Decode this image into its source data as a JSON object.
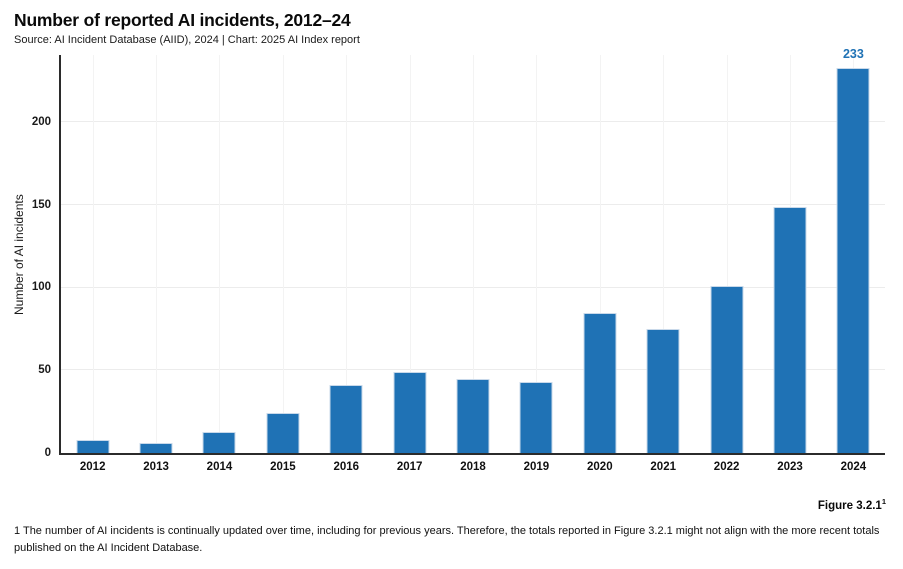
{
  "header": {
    "title": "Number of reported AI incidents, 2012–24",
    "subtitle": "Source: AI Incident Database (AIID), 2024 | Chart: 2025 AI Index report"
  },
  "footer": {
    "figure_label": "Figure 3.2.1",
    "figure_label_superscript": "1",
    "footnote": "1 The number of AI incidents is continually updated over time, including for previous years. Therefore, the totals reported in Figure 3.2.1 might not align with the more recent totals published on the AI Incident Database."
  },
  "colors": {
    "bar": "#1F72B5",
    "bar_edge": "#C9D9EA",
    "data_label": "#1F72B5",
    "axis": "#2B2B2B",
    "gridline_h": "#ECECEC",
    "gridline_v": "#F3F3F3",
    "text": "#111111"
  },
  "chart_data": {
    "type": "bar",
    "title": "Number of reported AI incidents, 2012–24",
    "categories": [
      "2012",
      "2013",
      "2014",
      "2015",
      "2016",
      "2017",
      "2018",
      "2019",
      "2020",
      "2021",
      "2022",
      "2023",
      "2024"
    ],
    "values": [
      8,
      6,
      13,
      24,
      41,
      49,
      45,
      43,
      85,
      75,
      101,
      149,
      233
    ],
    "value_labels": [
      null,
      null,
      null,
      null,
      null,
      null,
      null,
      null,
      null,
      null,
      null,
      null,
      "233"
    ],
    "xlabel": "",
    "ylabel": "Number of AI incidents",
    "yticks": [
      0,
      50,
      100,
      150,
      200
    ],
    "ylim": [
      0,
      242
    ],
    "grid": true,
    "legend": "none",
    "bar_color": "#1F72B5"
  }
}
